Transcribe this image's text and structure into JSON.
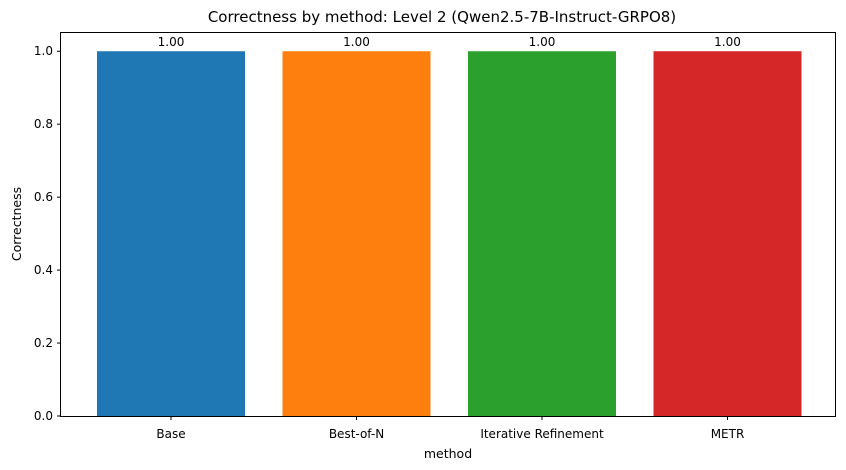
{
  "chart_data": {
    "type": "bar",
    "title": "Correctness by method: Level 2 (Qwen2.5-7B-Instruct-GRPO8)",
    "xlabel": "method",
    "ylabel": "Correctness",
    "categories": [
      "Base",
      "Best-of-N",
      "Iterative Refinement",
      "METR"
    ],
    "values": [
      1.0,
      1.0,
      1.0,
      1.0
    ],
    "data_labels": [
      "1.00",
      "1.00",
      "1.00",
      "1.00"
    ],
    "colors": [
      "#1f77b4",
      "#ff7f0e",
      "#2ca02c",
      "#d62728"
    ],
    "ylim": [
      0,
      1.05
    ],
    "yticks": [
      0.0,
      0.2,
      0.4,
      0.6,
      0.8,
      1.0
    ],
    "ytick_labels": [
      "0.0",
      "0.2",
      "0.4",
      "0.6",
      "0.8",
      "1.0"
    ],
    "grid": false,
    "legend": "none"
  }
}
